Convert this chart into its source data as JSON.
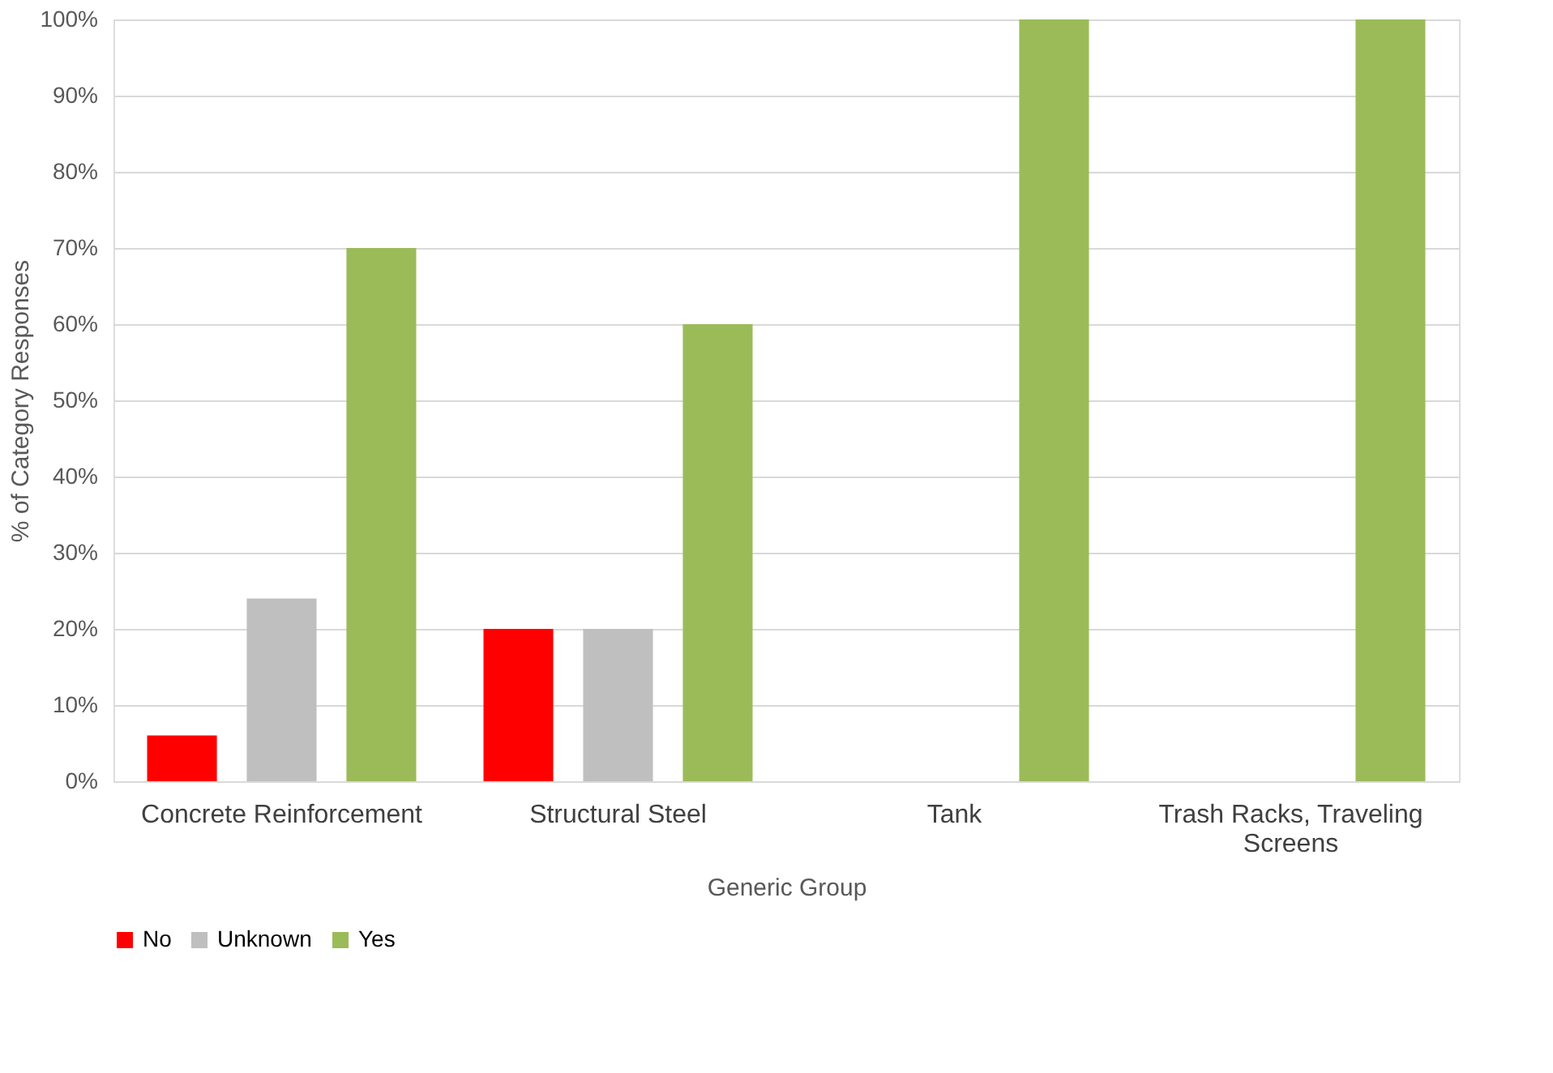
{
  "chart_data": {
    "type": "bar",
    "xlabel": "Generic Group",
    "ylabel": "% of Category Responses",
    "categories": [
      "Concrete Reinforcement",
      "Structural Steel",
      "Tank",
      "Trash Racks, Traveling Screens"
    ],
    "series": [
      {
        "name": "No",
        "color": "#ff0000",
        "values": [
          6,
          20,
          null,
          null
        ]
      },
      {
        "name": "Unknown",
        "color": "#bfbfbf",
        "values": [
          24,
          20,
          null,
          null
        ]
      },
      {
        "name": "Yes",
        "color": "#9bbb59",
        "values": [
          70,
          60,
          100,
          100
        ]
      }
    ],
    "ylim": [
      0,
      100
    ],
    "yticks": [
      {
        "value": 0,
        "label": "0%"
      },
      {
        "value": 10,
        "label": "10%"
      },
      {
        "value": 20,
        "label": "20%"
      },
      {
        "value": 30,
        "label": "30%"
      },
      {
        "value": 40,
        "label": "40%"
      },
      {
        "value": 50,
        "label": "50%"
      },
      {
        "value": 60,
        "label": "60%"
      },
      {
        "value": 70,
        "label": "70%"
      },
      {
        "value": 80,
        "label": "80%"
      },
      {
        "value": 90,
        "label": "90%"
      },
      {
        "value": 100,
        "label": "100%"
      }
    ],
    "grid": "y",
    "legend": "bottom"
  }
}
